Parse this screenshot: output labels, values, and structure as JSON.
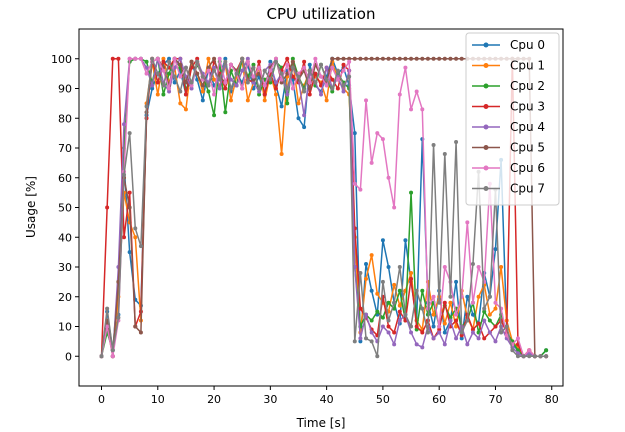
{
  "chart_data": {
    "type": "line",
    "title": "CPU utilization",
    "xlabel": "Time [s]",
    "ylabel": "Usage [%]",
    "xlim": [
      -4,
      82
    ],
    "ylim": [
      -10,
      110
    ],
    "xticks": [
      0,
      10,
      20,
      30,
      40,
      50,
      60,
      70,
      80
    ],
    "yticks": [
      0,
      10,
      20,
      30,
      40,
      50,
      60,
      70,
      80,
      90,
      100
    ],
    "grid": false,
    "legend_position": "top-right",
    "x": [
      0,
      1,
      2,
      3,
      4,
      5,
      6,
      7,
      8,
      9,
      10,
      11,
      12,
      13,
      14,
      15,
      16,
      17,
      18,
      19,
      20,
      21,
      22,
      23,
      24,
      25,
      26,
      27,
      28,
      29,
      30,
      31,
      32,
      33,
      34,
      35,
      36,
      37,
      38,
      39,
      40,
      41,
      42,
      43,
      44,
      45,
      46,
      47,
      48,
      49,
      50,
      51,
      52,
      53,
      54,
      55,
      56,
      57,
      58,
      59,
      60,
      61,
      62,
      63,
      64,
      65,
      66,
      67,
      68,
      69,
      70,
      71,
      72,
      73,
      74,
      75,
      76,
      77,
      78,
      79
    ],
    "series": [
      {
        "name": "Cpu 0",
        "color": "#1f77b4",
        "values": [
          0,
          15,
          2,
          14,
          65,
          35,
          19,
          17,
          81,
          90,
          95,
          98,
          100,
          92,
          96,
          88,
          99,
          93,
          86,
          97,
          91,
          94,
          100,
          89,
          95,
          92,
          98,
          90,
          94,
          88,
          99,
          91,
          84,
          96,
          93,
          80,
          77,
          98,
          91,
          89,
          94,
          100,
          95,
          97,
          91,
          75,
          5,
          31,
          22,
          14,
          39,
          30,
          18,
          11,
          39,
          25,
          12,
          73,
          18,
          10,
          22,
          8,
          12,
          25,
          6,
          20,
          14,
          11,
          28,
          20,
          36,
          66,
          9,
          4,
          2,
          0,
          1,
          0,
          0,
          2
        ]
      },
      {
        "name": "Cpu 1",
        "color": "#ff7f0e",
        "values": [
          0,
          10,
          0,
          20,
          55,
          45,
          40,
          12,
          85,
          99,
          88,
          100,
          92,
          97,
          85,
          83,
          99,
          95,
          89,
          100,
          93,
          91,
          98,
          86,
          94,
          99,
          86,
          92,
          97,
          86,
          95,
          88,
          68,
          94,
          99,
          85,
          91,
          96,
          94,
          92,
          86,
          99,
          93,
          90,
          88,
          40,
          8,
          26,
          34,
          21,
          18,
          15,
          24,
          17,
          22,
          28,
          12,
          9,
          25,
          14,
          20,
          11,
          18,
          10,
          22,
          13,
          9,
          20,
          24,
          14,
          16,
          30,
          12,
          5,
          3,
          0,
          2,
          0,
          0,
          0
        ]
      },
      {
        "name": "Cpu 2",
        "color": "#2ca02c",
        "values": [
          0,
          8,
          2,
          25,
          70,
          99,
          100,
          100,
          99,
          92,
          100,
          88,
          95,
          100,
          97,
          90,
          92,
          98,
          94,
          89,
          81,
          99,
          82,
          96,
          91,
          100,
          94,
          98,
          88,
          93,
          92,
          99,
          97,
          85,
          100,
          94,
          90,
          96,
          91,
          98,
          93,
          89,
          95,
          92,
          90,
          30,
          10,
          14,
          12,
          15,
          13,
          18,
          16,
          22,
          12,
          55,
          9,
          22,
          14,
          18,
          10,
          17,
          13,
          16,
          10,
          12,
          18,
          8,
          15,
          12,
          10,
          14,
          8,
          5,
          2,
          0,
          1,
          0,
          0,
          2
        ]
      },
      {
        "name": "Cpu 3",
        "color": "#d62728",
        "values": [
          0,
          50,
          100,
          100,
          40,
          55,
          10,
          15,
          80,
          100,
          92,
          99,
          97,
          100,
          100,
          88,
          97,
          100,
          94,
          91,
          99,
          95,
          90,
          98,
          96,
          100,
          93,
          92,
          99,
          88,
          95,
          90,
          96,
          100,
          94,
          92,
          99,
          88,
          95,
          91,
          97,
          93,
          90,
          98,
          96,
          43,
          16,
          13,
          9,
          7,
          20,
          10,
          8,
          15,
          12,
          26,
          10,
          8,
          12,
          6,
          9,
          18,
          10,
          12,
          7,
          14,
          9,
          11,
          6,
          8,
          10,
          12,
          8,
          100,
          4,
          0,
          2,
          0,
          0,
          0
        ]
      },
      {
        "name": "Cpu 4",
        "color": "#9467bd",
        "values": [
          0,
          12,
          0,
          30,
          78,
          100,
          100,
          100,
          97,
          91,
          100,
          92,
          89,
          97,
          100,
          94,
          90,
          99,
          95,
          92,
          97,
          90,
          98,
          93,
          91,
          96,
          100,
          92,
          89,
          96,
          98,
          92,
          95,
          88,
          97,
          93,
          81,
          95,
          92,
          88,
          97,
          90,
          94,
          89,
          96,
          30,
          6,
          14,
          8,
          5,
          10,
          8,
          4,
          12,
          14,
          8,
          4,
          3,
          10,
          6,
          8,
          4,
          12,
          6,
          10,
          4,
          8,
          6,
          12,
          8,
          5,
          10,
          6,
          3,
          1,
          0,
          1,
          0,
          0,
          0
        ]
      },
      {
        "name": "Cpu 5",
        "color": "#8c564b",
        "values": [
          0,
          12,
          0,
          25,
          60,
          50,
          10,
          8,
          82,
          99,
          100,
          97,
          91,
          100,
          98,
          92,
          99,
          95,
          91,
          97,
          100,
          94,
          92,
          98,
          96,
          90,
          99,
          93,
          95,
          91,
          97,
          100,
          92,
          95,
          99,
          93,
          96,
          90,
          98,
          94,
          92,
          100,
          100,
          100,
          100,
          100,
          100,
          100,
          100,
          100,
          100,
          100,
          100,
          100,
          100,
          100,
          100,
          100,
          100,
          100,
          100,
          100,
          100,
          100,
          100,
          100,
          100,
          100,
          100,
          100,
          100,
          100,
          100,
          100,
          100,
          100,
          100,
          0,
          0,
          0
        ]
      },
      {
        "name": "Cpu 6",
        "color": "#e377c2",
        "values": [
          0,
          10,
          0,
          12,
          62,
          100,
          100,
          100,
          95,
          99,
          100,
          96,
          90,
          100,
          94,
          97,
          91,
          99,
          93,
          96,
          88,
          100,
          92,
          98,
          95,
          90,
          99,
          94,
          97,
          91,
          96,
          100,
          93,
          98,
          90,
          95,
          97,
          92,
          100,
          94,
          91,
          97,
          93,
          96,
          99,
          58,
          56,
          86,
          65,
          75,
          73,
          60,
          50,
          88,
          97,
          83,
          89,
          83,
          16,
          20,
          10,
          30,
          25,
          14,
          20,
          45,
          18,
          30,
          25,
          58,
          18,
          16,
          7,
          4,
          6,
          0,
          2,
          0,
          0,
          0
        ]
      },
      {
        "name": "Cpu 7",
        "color": "#7f7f7f",
        "values": [
          0,
          16,
          2,
          13,
          61,
          75,
          43,
          37,
          84,
          100,
          95,
          91,
          99,
          94,
          89,
          97,
          92,
          99,
          94,
          91,
          96,
          93,
          99,
          90,
          95,
          100,
          92,
          97,
          90,
          96,
          93,
          99,
          95,
          90,
          97,
          94,
          89,
          96,
          92,
          98,
          93,
          90,
          96,
          91,
          94,
          5,
          28,
          6,
          5,
          0,
          25,
          12,
          18,
          30,
          14,
          10,
          22,
          16,
          8,
          71,
          18,
          68,
          20,
          72,
          8,
          12,
          31,
          62,
          16,
          20,
          56,
          8,
          10,
          2,
          0,
          0,
          0,
          0,
          0,
          0
        ]
      }
    ]
  }
}
